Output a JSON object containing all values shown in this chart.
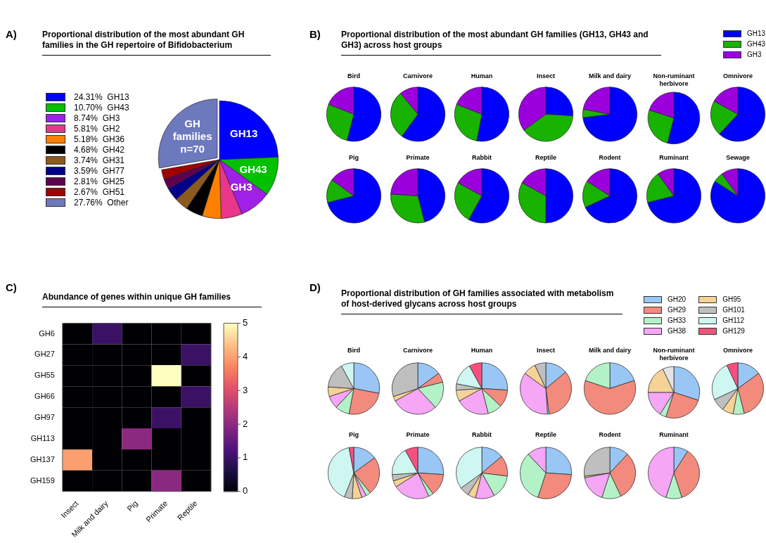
{
  "chart_data": [
    {
      "type": "pie",
      "title": "Proportional distribution of the most abundant GH families in the GH repertoire of Bifidobacterium",
      "categories": [
        "GH13",
        "GH43",
        "GH3",
        "GH2",
        "GH36",
        "GH42",
        "GH31",
        "GH77",
        "GH25",
        "GH51",
        "Other"
      ],
      "values": [
        24.31,
        10.7,
        8.74,
        5.81,
        5.18,
        4.68,
        3.74,
        3.59,
        2.81,
        2.67,
        27.76
      ],
      "value_labels": [
        "24.31%",
        "10.70%",
        "8.74%",
        "5.81%",
        "5.18%",
        "4.68%",
        "3.74%",
        "3.59%",
        "2.81%",
        "2.67%",
        "27.76%"
      ],
      "colors": [
        "#0000ff",
        "#00c000",
        "#a020e8",
        "#e8368a",
        "#ff8000",
        "#000000",
        "#8b5a1e",
        "#00008b",
        "#5c0050",
        "#a00000",
        "#6d79bd"
      ],
      "legend": "left",
      "annotations": [
        "A)",
        {
          "text": "GH13",
          "x": "GH13"
        },
        {
          "text": "GH43",
          "x": "GH43"
        },
        {
          "text": "GH3",
          "x": "GH3"
        },
        {
          "text": "GH families n=70",
          "x": "Other"
        }
      ]
    },
    {
      "type": "other",
      "title": "Proportional distribution of the most abundant GH families (GH13, GH43 and GH3) across host groups",
      "annotations": [
        "B)"
      ]
    },
    {
      "type": "pie",
      "title": "Bird",
      "categories": [
        null,
        null,
        null
      ],
      "values": [
        54,
        27,
        19
      ],
      "colors": [
        "#0000ff",
        "#17b300",
        "#9b00dc"
      ]
    },
    {
      "type": "pie",
      "title": "Carnivore",
      "categories": [
        null,
        null,
        null
      ],
      "values": [
        60,
        29,
        11
      ],
      "colors": [
        "#0000ff",
        "#17b300",
        "#9b00dc"
      ]
    },
    {
      "type": "pie",
      "title": "Human",
      "categories": [
        null,
        null,
        null
      ],
      "values": [
        53,
        28,
        19
      ],
      "colors": [
        "#0000ff",
        "#17b300",
        "#9b00dc"
      ]
    },
    {
      "type": "pie",
      "title": "Insect",
      "categories": [
        null,
        null,
        null
      ],
      "values": [
        26,
        39,
        35
      ],
      "colors": [
        "#0000ff",
        "#17b300",
        "#9b00dc"
      ]
    },
    {
      "type": "pie",
      "title": "Milk and dairy",
      "categories": [
        null,
        null,
        null
      ],
      "values": [
        73,
        5,
        22
      ],
      "colors": [
        "#0000ff",
        "#17b300",
        "#9b00dc"
      ]
    },
    {
      "type": "pie",
      "title": "Non-ruminant herbivore",
      "categories": [
        null,
        null,
        null
      ],
      "values": [
        54,
        26,
        20
      ],
      "colors": [
        "#0000ff",
        "#17b300",
        "#9b00dc"
      ]
    },
    {
      "type": "pie",
      "title": "Omnivore",
      "categories": [
        "GH13",
        "GH43",
        "GH3"
      ],
      "values": [
        62,
        21,
        17
      ],
      "colors": [
        "#0000ff",
        "#17b300",
        "#9b00dc"
      ],
      "legend": "top right"
    },
    {
      "type": "pie",
      "title": "Pig",
      "categories": [
        null,
        null,
        null
      ],
      "values": [
        71,
        14,
        15
      ],
      "colors": [
        "#0000ff",
        "#17b300",
        "#9b00dc"
      ]
    },
    {
      "type": "pie",
      "title": "Primate",
      "categories": [
        null,
        null,
        null
      ],
      "values": [
        46,
        30,
        24
      ],
      "colors": [
        "#0000ff",
        "#17b300",
        "#9b00dc"
      ]
    },
    {
      "type": "pie",
      "title": "Rabbit",
      "categories": [
        null,
        null,
        null
      ],
      "values": [
        58,
        25,
        17
      ],
      "colors": [
        "#0000ff",
        "#17b300",
        "#9b00dc"
      ]
    },
    {
      "type": "pie",
      "title": "Reptile",
      "categories": [
        null,
        null,
        null
      ],
      "values": [
        50,
        33,
        17
      ],
      "colors": [
        "#0000ff",
        "#17b300",
        "#9b00dc"
      ]
    },
    {
      "type": "pie",
      "title": "Rodent",
      "categories": [
        null,
        null,
        null
      ],
      "values": [
        68,
        16,
        16
      ],
      "colors": [
        "#0000ff",
        "#17b300",
        "#9b00dc"
      ]
    },
    {
      "type": "pie",
      "title": "Ruminant",
      "categories": [
        null,
        null,
        null
      ],
      "values": [
        71,
        19,
        10
      ],
      "colors": [
        "#0000ff",
        "#17b300",
        "#9b00dc"
      ]
    },
    {
      "type": "pie",
      "title": "Sewage",
      "categories": [
        null,
        null,
        null
      ],
      "values": [
        84,
        6,
        10
      ],
      "colors": [
        "#0000ff",
        "#17b300",
        "#9b00dc"
      ]
    },
    {
      "type": "heatmap",
      "title": "Abundance of genes within unique GH families",
      "categories": [
        "Insect",
        "Milk and dairy",
        "Pig",
        "Primate",
        "Reptile"
      ],
      "y_categories": [
        "GH6",
        "GH27",
        "GH55",
        "GH66",
        "GH97",
        "GH113",
        "GH137",
        "GH159"
      ],
      "cells": [
        [
          0,
          1,
          0,
          0,
          0
        ],
        [
          0,
          0,
          0,
          0,
          1
        ],
        [
          0,
          0,
          0,
          5,
          0
        ],
        [
          0,
          0,
          0,
          0,
          1
        ],
        [
          0,
          0,
          0,
          1,
          0
        ],
        [
          0,
          0,
          2,
          0,
          0
        ],
        [
          4,
          0,
          0,
          0,
          0
        ],
        [
          0,
          0,
          0,
          2,
          0
        ]
      ],
      "clim": [
        0,
        5
      ],
      "cticks": [
        0,
        1,
        2,
        3,
        4,
        5
      ],
      "annotations": [
        "C)"
      ]
    },
    {
      "type": "other",
      "title": "Proportional distribution of GH families associated with metabolism of host-derived glycans across host groups",
      "annotations": [
        "D)"
      ]
    },
    {
      "type": "pie",
      "title": "Bird",
      "categories": [
        null,
        null,
        null,
        null,
        null,
        null,
        null,
        null
      ],
      "values": [
        28,
        25,
        9,
        8,
        6,
        16,
        8,
        0
      ],
      "colors": [
        "#99c6f5",
        "#f28b7d",
        "#b3f2c6",
        "#f5a6f5",
        "#f5d296",
        "#bfbfbf",
        "#cff7f2",
        "#f7507e"
      ]
    },
    {
      "type": "pie",
      "title": "Carnivore",
      "categories": [
        null,
        null,
        null,
        null,
        null,
        null,
        null,
        null
      ],
      "values": [
        15,
        6,
        17,
        29,
        3,
        30,
        0,
        0
      ],
      "colors": [
        "#99c6f5",
        "#f28b7d",
        "#b3f2c6",
        "#f5a6f5",
        "#f5d296",
        "#bfbfbf",
        "#cff7f2",
        "#f7507e"
      ]
    },
    {
      "type": "pie",
      "title": "Human",
      "categories": [
        null,
        null,
        null,
        null,
        null,
        null,
        null,
        null
      ],
      "values": [
        26,
        11,
        9,
        21,
        7,
        4,
        14,
        8
      ],
      "colors": [
        "#99c6f5",
        "#f28b7d",
        "#b3f2c6",
        "#f5a6f5",
        "#f5d296",
        "#bfbfbf",
        "#cff7f2",
        "#f7507e"
      ]
    },
    {
      "type": "pie",
      "title": "Insect",
      "categories": [
        null,
        null,
        null,
        null,
        null,
        null,
        null,
        null
      ],
      "values": [
        14,
        34,
        1,
        36,
        8,
        7,
        0,
        0
      ],
      "colors": [
        "#99c6f5",
        "#f28b7d",
        "#b3f2c6",
        "#f5a6f5",
        "#f5d296",
        "#bfbfbf",
        "#cff7f2",
        "#f7507e"
      ]
    },
    {
      "type": "pie",
      "title": "Milk and dairy",
      "categories": [
        null,
        null,
        null,
        null,
        null,
        null,
        null,
        null
      ],
      "values": [
        20,
        60,
        20,
        0,
        0,
        0,
        0,
        0
      ],
      "colors": [
        "#99c6f5",
        "#f28b7d",
        "#b3f2c6",
        "#f5a6f5",
        "#f5d296",
        "#bfbfbf",
        "#cff7f2",
        "#f7507e"
      ]
    },
    {
      "type": "pie",
      "title": "Non-ruminant herbivore",
      "categories": [
        null,
        null,
        null,
        null,
        null,
        null,
        null,
        null
      ],
      "values": [
        30,
        25,
        4,
        16,
        18,
        7,
        0,
        0
      ],
      "colors": [
        "#99c6f5",
        "#f28b7d",
        "#b3f2c6",
        "#f5a6f5",
        "#f5d296",
        "#e3e3e3",
        "#cff7f2",
        "#f7507e"
      ]
    },
    {
      "type": "pie",
      "title": "Omnivore",
      "categories": [
        "GH20",
        "GH29",
        "GH33",
        "GH38",
        "GH95",
        "GH101",
        "GH112",
        "GH129"
      ],
      "values": [
        15,
        31,
        7,
        0,
        7,
        8,
        25,
        7
      ],
      "colors": [
        "#99c6f5",
        "#f28b7d",
        "#b3f2c6",
        "#f5a6f5",
        "#f5d296",
        "#bfbfbf",
        "#cff7f2",
        "#f7507e"
      ],
      "legend": "top left"
    },
    {
      "type": "pie",
      "title": "Pig",
      "categories": [
        null,
        null,
        null,
        null,
        null,
        null,
        null,
        null
      ],
      "values": [
        15,
        24,
        3,
        3,
        6,
        5,
        41,
        3
      ],
      "colors": [
        "#99c6f5",
        "#f28b7d",
        "#b3f2c6",
        "#f5a6f5",
        "#f5d296",
        "#bfbfbf",
        "#cff7f2",
        "#f7507e"
      ]
    },
    {
      "type": "pie",
      "title": "Primate",
      "categories": [
        null,
        null,
        null,
        null,
        null,
        null,
        null,
        null
      ],
      "values": [
        26,
        14,
        3,
        23,
        4,
        4,
        18,
        8
      ],
      "colors": [
        "#99c6f5",
        "#f28b7d",
        "#b3f2c6",
        "#f5a6f5",
        "#f5d296",
        "#bfbfbf",
        "#cff7f2",
        "#f7507e"
      ]
    },
    {
      "type": "pie",
      "title": "Rabbit",
      "categories": [
        null,
        null,
        null,
        null,
        null,
        null,
        null,
        null
      ],
      "values": [
        14,
        13,
        15,
        12,
        5,
        6,
        35,
        0
      ],
      "colors": [
        "#99c6f5",
        "#f28b7d",
        "#b3f2c6",
        "#f5a6f5",
        "#f5d296",
        "#bfbfbf",
        "#cff7f2",
        "#f7507e"
      ]
    },
    {
      "type": "pie",
      "title": "Reptile",
      "categories": [
        null,
        null,
        null,
        null,
        null,
        null,
        null,
        null
      ],
      "values": [
        26,
        29,
        33,
        12,
        0,
        0,
        0,
        0
      ],
      "colors": [
        "#99c6f5",
        "#f28b7d",
        "#b3f2c6",
        "#f5a6f5",
        "#f5d296",
        "#bfbfbf",
        "#cff7f2",
        "#f7507e"
      ]
    },
    {
      "type": "pie",
      "title": "Rodent",
      "categories": [
        null,
        null,
        null,
        null,
        null,
        null,
        null,
        null
      ],
      "values": [
        12,
        31,
        12,
        17,
        1,
        27,
        0,
        0
      ],
      "colors": [
        "#99c6f5",
        "#f28b7d",
        "#b3f2c6",
        "#f5a6f5",
        "#f5d296",
        "#bfbfbf",
        "#cff7f2",
        "#f7507e"
      ]
    },
    {
      "type": "pie",
      "title": "Ruminant",
      "categories": [
        null,
        null,
        null,
        null,
        null,
        null,
        null,
        null
      ],
      "values": [
        9,
        36,
        10,
        45,
        0,
        0,
        0,
        0
      ],
      "colors": [
        "#99c6f5",
        "#f28b7d",
        "#b3f2c6",
        "#f5a6f5",
        "#f5d296",
        "#bfbfbf",
        "#cff7f2",
        "#f7507e"
      ]
    }
  ]
}
